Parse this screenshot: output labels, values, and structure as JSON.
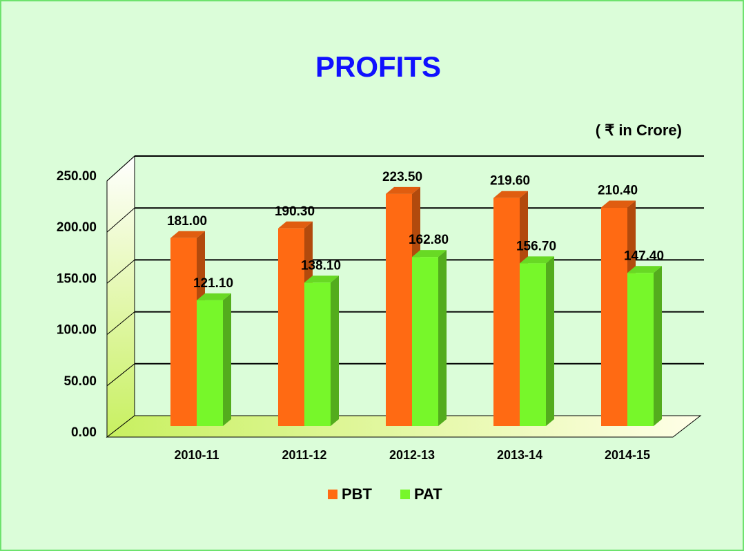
{
  "chart_data": {
    "type": "bar",
    "title": "PROFITS",
    "subtitle": "( ₹ in Crore)",
    "categories": [
      "2010-11",
      "2011-12",
      "2012-13",
      "2013-14",
      "2014-15"
    ],
    "series": [
      {
        "name": "PBT",
        "color": "#ff6a13",
        "values": [
          181,
          190.3,
          223.5,
          219.6,
          210.4
        ],
        "value_labels": [
          "181.00",
          "190.30",
          "223.50",
          "219.60",
          "210.40"
        ]
      },
      {
        "name": "PAT",
        "color": "#77f72a",
        "values": [
          121.1,
          138.1,
          162.8,
          156.7,
          147.4
        ],
        "value_labels": [
          "121.10",
          "138.10",
          "162.80",
          "156.70",
          "147.40"
        ]
      }
    ],
    "ylim": [
      0,
      250
    ],
    "yticks": [
      {
        "value": 0,
        "label": "0.00"
      },
      {
        "value": 50,
        "label": "50.00"
      },
      {
        "value": 100,
        "label": "100.00"
      },
      {
        "value": 150,
        "label": "150.00"
      },
      {
        "value": 200,
        "label": "200.00"
      },
      {
        "value": 250,
        "label": "250.00"
      }
    ],
    "grid": true,
    "legend": "bottom"
  }
}
